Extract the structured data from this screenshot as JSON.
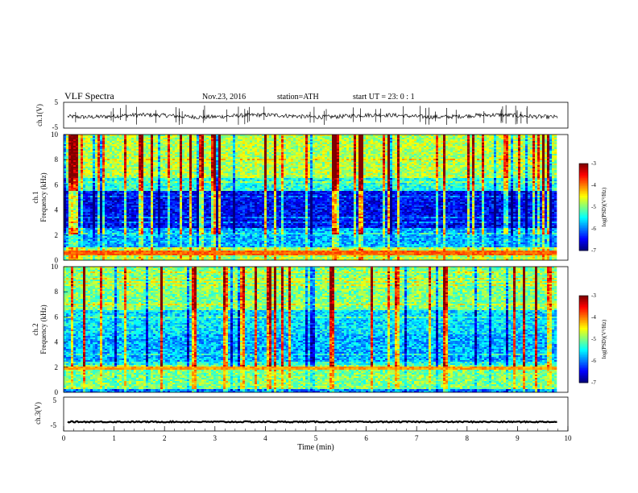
{
  "header": {
    "title": "VLF Spectra",
    "date": "Nov.23, 2016",
    "station": "station=ATH",
    "start": "start UT =  23: 0  : 1"
  },
  "chart_data": [
    {
      "type": "line",
      "id": "ch1-waveform",
      "ylabel": "ch.1(V)",
      "ylim": [
        -5,
        5
      ],
      "y_ticks": [
        "5",
        "-5"
      ],
      "xlim": [
        0,
        10
      ],
      "baseline": -0.3,
      "x_units": "min"
    },
    {
      "type": "heatmap",
      "id": "ch1-spectrogram",
      "ylabel_line1": "ch.1",
      "ylabel_line2": "Frequency (kHz)",
      "ylim": [
        0,
        10
      ],
      "y_ticks": [
        "0",
        "2",
        "4",
        "6",
        "8",
        "10"
      ],
      "xlim": [
        0,
        9.8
      ],
      "colorbar": {
        "label": "log(PSD)(V²/Hz)",
        "range": [
          -7,
          -3
        ],
        "ticks": [
          "-3",
          "-4",
          "-5",
          "-6",
          "-7"
        ]
      }
    },
    {
      "type": "heatmap",
      "id": "ch2-spectrogram",
      "ylabel_line1": "ch.2",
      "ylabel_line2": "Frequency (kHz)",
      "ylim": [
        0,
        10
      ],
      "y_ticks": [
        "0",
        "2",
        "4",
        "6",
        "8",
        "10"
      ],
      "xlim": [
        0,
        9.8
      ],
      "colorbar": {
        "label": "log(PSD)(V²/Hz)",
        "range": [
          -7,
          -3
        ],
        "ticks": [
          "-3",
          "-4",
          "-5",
          "-6",
          "-7"
        ]
      }
    },
    {
      "type": "line",
      "id": "ch3-waveform",
      "ylabel": "ch.3(V)",
      "ylim": [
        -5,
        5
      ],
      "y_ticks": [
        "5",
        "-5"
      ],
      "xlim": [
        0,
        10
      ],
      "baseline": -2.3,
      "x_units": "min",
      "xlabel": "Time (min)",
      "x_ticks": [
        "0",
        "1",
        "2",
        "3",
        "4",
        "5",
        "6",
        "7",
        "8",
        "9",
        "10"
      ]
    }
  ]
}
